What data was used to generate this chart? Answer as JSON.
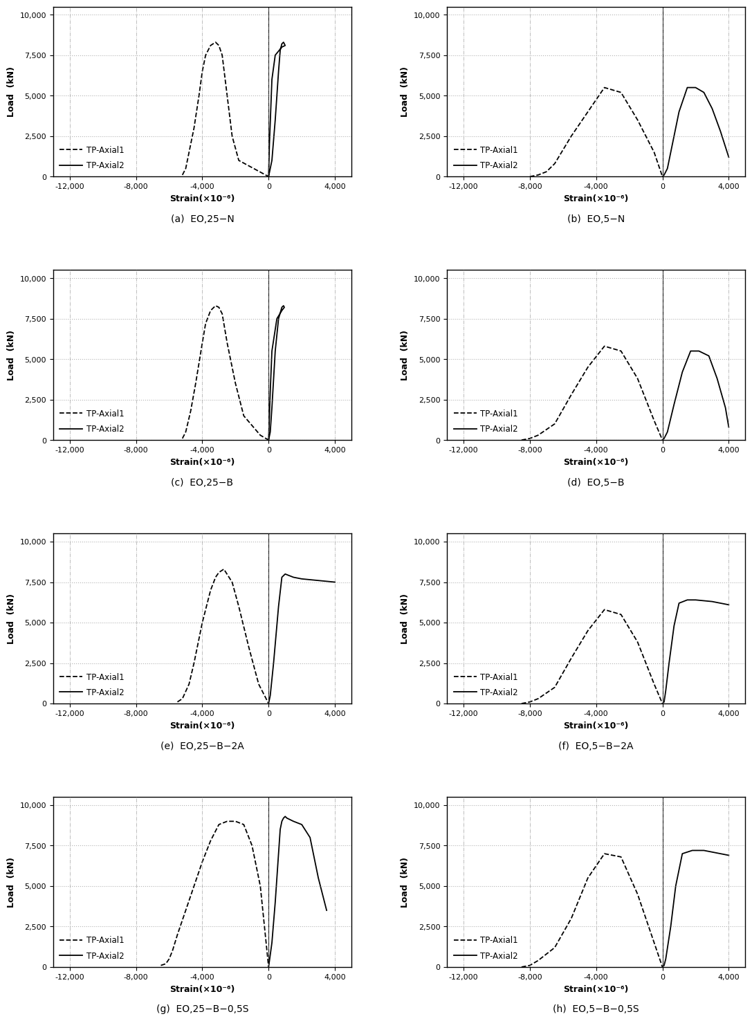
{
  "labels": [
    "(a)  EO,25−N",
    "(b)  EO,5−N",
    "(c)  EO,25−B",
    "(d)  EO,5−B",
    "(e)  EO,25−B−2A",
    "(f)  EO,5−B−2A",
    "(g)  EO,25−B−0,5S",
    "(h)  EO,5−B−0,5S"
  ],
  "panels": [
    {
      "axial1_x": [
        -5200,
        -5000,
        -4800,
        -4500,
        -4200,
        -4000,
        -3800,
        -3500,
        -3200,
        -3000,
        -2800,
        -2500,
        -2200,
        -1800,
        0
      ],
      "axial1_y": [
        100,
        500,
        1500,
        3000,
        5000,
        6500,
        7500,
        8100,
        8300,
        8100,
        7500,
        5000,
        2500,
        1000,
        0
      ],
      "axial2_x": [
        0,
        200,
        400,
        600,
        700,
        800,
        900,
        950,
        1000,
        800,
        400,
        200,
        50,
        0
      ],
      "axial2_y": [
        0,
        1000,
        3500,
        6500,
        7800,
        8200,
        8300,
        8200,
        8100,
        8000,
        7500,
        6000,
        2000,
        0
      ]
    },
    {
      "axial1_x": [
        -8000,
        -7500,
        -7000,
        -6500,
        -5500,
        -4500,
        -3500,
        -2500,
        -1500,
        -500,
        0
      ],
      "axial1_y": [
        0,
        100,
        300,
        800,
        2500,
        4000,
        5500,
        5200,
        3500,
        1500,
        0
      ],
      "axial2_x": [
        0,
        100,
        300,
        600,
        1000,
        1500,
        2000,
        2500,
        3000,
        3500,
        4000
      ],
      "axial2_y": [
        0,
        100,
        500,
        2000,
        4000,
        5500,
        5500,
        5200,
        4200,
        2800,
        1200
      ]
    },
    {
      "axial1_x": [
        -5200,
        -5000,
        -4700,
        -4400,
        -4000,
        -3800,
        -3500,
        -3200,
        -3000,
        -2800,
        -2500,
        -2000,
        -1500,
        -500,
        0
      ],
      "axial1_y": [
        100,
        500,
        1800,
        3500,
        6000,
        7200,
        8000,
        8300,
        8200,
        7800,
        6000,
        3500,
        1500,
        300,
        0
      ],
      "axial2_x": [
        0,
        100,
        200,
        400,
        600,
        800,
        900,
        950,
        800,
        500,
        200,
        100,
        0
      ],
      "axial2_y": [
        0,
        500,
        2000,
        5500,
        7500,
        8200,
        8300,
        8200,
        8000,
        7500,
        5500,
        3000,
        0
      ]
    },
    {
      "axial1_x": [
        -8500,
        -8000,
        -7500,
        -6500,
        -5500,
        -4500,
        -3500,
        -2500,
        -1500,
        -500,
        0
      ],
      "axial1_y": [
        0,
        100,
        300,
        1000,
        2800,
        4500,
        5800,
        5500,
        3800,
        1200,
        0
      ],
      "axial2_x": [
        0,
        100,
        300,
        700,
        1200,
        1700,
        2200,
        2800,
        3300,
        3800,
        4000
      ],
      "axial2_y": [
        0,
        100,
        500,
        2200,
        4200,
        5500,
        5500,
        5200,
        3800,
        2000,
        800
      ]
    },
    {
      "axial1_x": [
        -5500,
        -5200,
        -4800,
        -4500,
        -4000,
        -3500,
        -3200,
        -3000,
        -2700,
        -2200,
        -1800,
        -1200,
        -600,
        0
      ],
      "axial1_y": [
        100,
        300,
        1200,
        2500,
        5000,
        7000,
        7800,
        8100,
        8300,
        7500,
        6000,
        3500,
        1200,
        0
      ],
      "axial2_x": [
        0,
        100,
        300,
        600,
        800,
        1000,
        1500,
        2000,
        3000,
        4000
      ],
      "axial2_y": [
        0,
        500,
        2500,
        6000,
        7800,
        8000,
        7800,
        7700,
        7600,
        7500
      ]
    },
    {
      "axial1_x": [
        -8500,
        -8000,
        -7500,
        -6500,
        -5500,
        -4500,
        -3500,
        -2500,
        -1500,
        -500,
        0
      ],
      "axial1_y": [
        0,
        100,
        300,
        1000,
        2800,
        4500,
        5800,
        5500,
        3800,
        1200,
        0
      ],
      "axial2_x": [
        0,
        100,
        200,
        400,
        700,
        1000,
        1500,
        2000,
        3000,
        4000
      ],
      "axial2_y": [
        0,
        100,
        800,
        2500,
        4800,
        6200,
        6400,
        6400,
        6300,
        6100
      ]
    },
    {
      "axial1_x": [
        -6500,
        -6200,
        -6000,
        -5800,
        -5500,
        -5000,
        -4500,
        -4000,
        -3500,
        -3000,
        -2500,
        -2000,
        -1500,
        -1000,
        -500,
        0
      ],
      "axial1_y": [
        100,
        200,
        500,
        1000,
        2000,
        3500,
        5000,
        6500,
        7800,
        8800,
        9000,
        9000,
        8800,
        7500,
        5000,
        0
      ],
      "axial2_x": [
        0,
        200,
        400,
        600,
        700,
        800,
        900,
        1000,
        1100,
        1300,
        1500,
        2000,
        2500,
        3000,
        3500
      ],
      "axial2_y": [
        0,
        1500,
        4000,
        7000,
        8500,
        9000,
        9200,
        9300,
        9200,
        9100,
        9000,
        8800,
        8000,
        5500,
        3500
      ]
    },
    {
      "axial1_x": [
        -8500,
        -8000,
        -7500,
        -6500,
        -5500,
        -4500,
        -3500,
        -2500,
        -1500,
        -500,
        0
      ],
      "axial1_y": [
        0,
        100,
        400,
        1200,
        3000,
        5500,
        7000,
        6800,
        4500,
        1500,
        0
      ],
      "axial2_x": [
        0,
        100,
        200,
        500,
        800,
        1200,
        1800,
        2500,
        3000,
        3500,
        4000
      ],
      "axial2_y": [
        0,
        100,
        500,
        2500,
        5000,
        7000,
        7200,
        7200,
        7100,
        7000,
        6900
      ]
    }
  ],
  "xlim": [
    -13000,
    5000
  ],
  "ylim": [
    0,
    10500
  ],
  "xticks": [
    -12000,
    -8000,
    -4000,
    0,
    4000
  ],
  "yticks": [
    0,
    2500,
    5000,
    7500,
    10000
  ],
  "xlabel": "Strain(×10⁻⁶)",
  "ylabel": "Load  (kN)",
  "legend1": "TP-Axial1",
  "legend2": "TP-Axial2",
  "line_color": "black",
  "dashed_lw": 1.3,
  "solid_lw": 1.3,
  "font_size_tick": 8,
  "font_size_label": 9,
  "font_size_legend": 8.5,
  "font_size_caption": 10,
  "grid_color": "gray",
  "grid_alpha": 0.6,
  "fig_bg": "white"
}
